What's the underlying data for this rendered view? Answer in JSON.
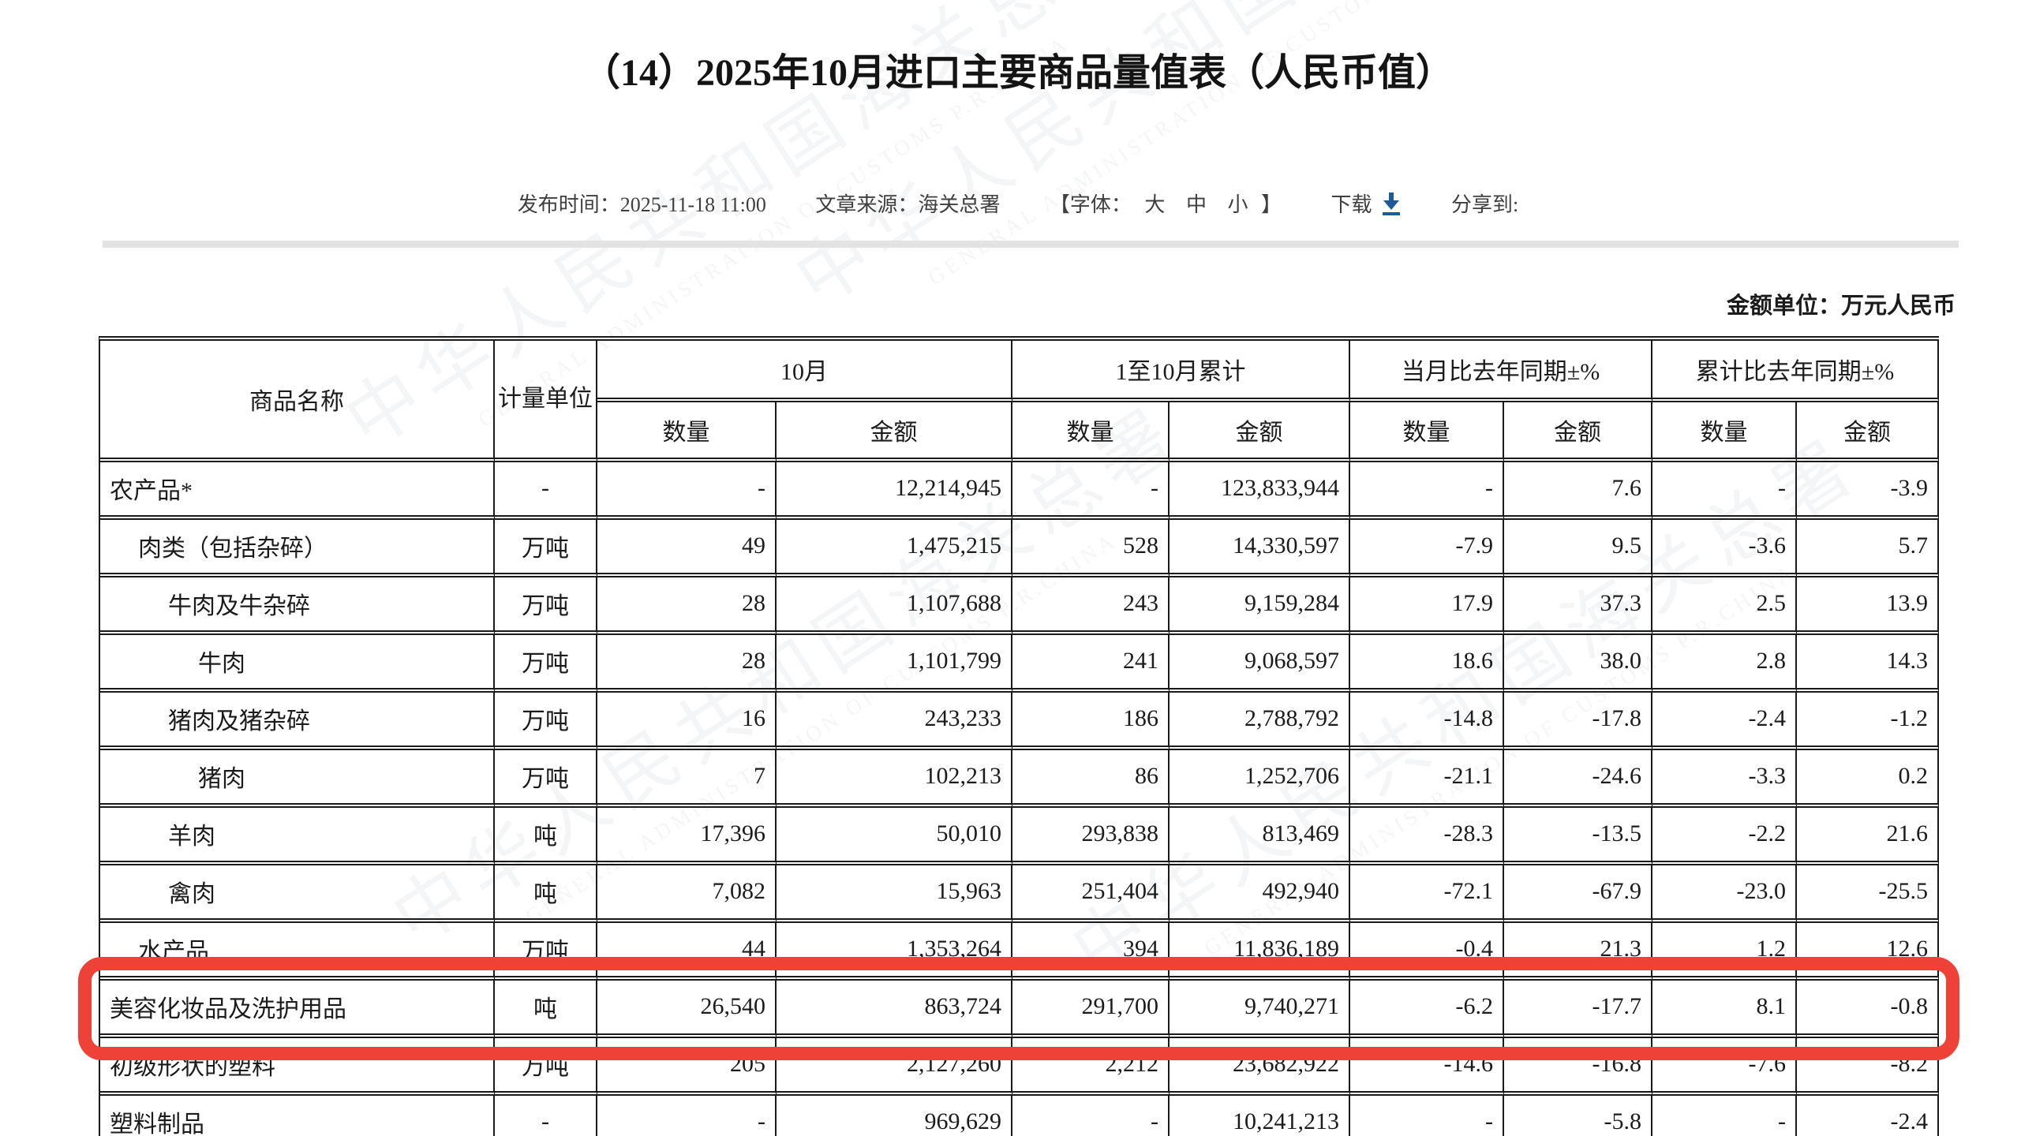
{
  "page": {
    "title": "（14）2025年10月进口主要商品量值表（人民币值）",
    "meta": {
      "publish": "发布时间：2025-11-18 11:00",
      "source": "文章来源：海关总署",
      "font_open": "【字体：",
      "font_large": "大",
      "font_medium": "中",
      "font_small": "小",
      "font_close": "】",
      "download_label": "下载",
      "share_label": "分享到:"
    },
    "unit_note": "金额单位：万元人民币"
  },
  "watermark": {
    "cn": "中华人民共和国海关总署",
    "en": "GENERAL ADMINISTRATION OF CUSTOMS P.R.CHINA"
  },
  "colors": {
    "annotation_red": "#ee4239",
    "download_blue": "#1c5a9c",
    "divider_gray": "#e3e3e3"
  },
  "table": {
    "header": {
      "col_product": "商品名称",
      "col_unit": "计量单位",
      "group_month": "10月",
      "group_cumulative": "1至10月累计",
      "group_month_yoy": "当月比去年同期±%",
      "group_cumulative_yoy": "累计比去年同期±%",
      "sub_qty": "数量",
      "sub_val": "金额"
    },
    "rows": [
      {
        "name": "农产品*",
        "indent": 0,
        "unit": "-",
        "m_qty": "-",
        "m_val": "12,214,945",
        "c_qty": "-",
        "c_val": "123,833,944",
        "ym_qty": "-",
        "ym_val": "7.6",
        "yc_qty": "-",
        "yc_val": "-3.9",
        "highlight": false
      },
      {
        "name": "肉类（包括杂碎）",
        "indent": 1,
        "unit": "万吨",
        "m_qty": "49",
        "m_val": "1,475,215",
        "c_qty": "528",
        "c_val": "14,330,597",
        "ym_qty": "-7.9",
        "ym_val": "9.5",
        "yc_qty": "-3.6",
        "yc_val": "5.7",
        "highlight": false
      },
      {
        "name": "牛肉及牛杂碎",
        "indent": 2,
        "unit": "万吨",
        "m_qty": "28",
        "m_val": "1,107,688",
        "c_qty": "243",
        "c_val": "9,159,284",
        "ym_qty": "17.9",
        "ym_val": "37.3",
        "yc_qty": "2.5",
        "yc_val": "13.9",
        "highlight": false
      },
      {
        "name": "牛肉",
        "indent": 3,
        "unit": "万吨",
        "m_qty": "28",
        "m_val": "1,101,799",
        "c_qty": "241",
        "c_val": "9,068,597",
        "ym_qty": "18.6",
        "ym_val": "38.0",
        "yc_qty": "2.8",
        "yc_val": "14.3",
        "highlight": false
      },
      {
        "name": "猪肉及猪杂碎",
        "indent": 2,
        "unit": "万吨",
        "m_qty": "16",
        "m_val": "243,233",
        "c_qty": "186",
        "c_val": "2,788,792",
        "ym_qty": "-14.8",
        "ym_val": "-17.8",
        "yc_qty": "-2.4",
        "yc_val": "-1.2",
        "highlight": false
      },
      {
        "name": "猪肉",
        "indent": 3,
        "unit": "万吨",
        "m_qty": "7",
        "m_val": "102,213",
        "c_qty": "86",
        "c_val": "1,252,706",
        "ym_qty": "-21.1",
        "ym_val": "-24.6",
        "yc_qty": "-3.3",
        "yc_val": "0.2",
        "highlight": false
      },
      {
        "name": "羊肉",
        "indent": 2,
        "unit": "吨",
        "m_qty": "17,396",
        "m_val": "50,010",
        "c_qty": "293,838",
        "c_val": "813,469",
        "ym_qty": "-28.3",
        "ym_val": "-13.5",
        "yc_qty": "-2.2",
        "yc_val": "21.6",
        "highlight": false
      },
      {
        "name": "禽肉",
        "indent": 2,
        "unit": "吨",
        "m_qty": "7,082",
        "m_val": "15,963",
        "c_qty": "251,404",
        "c_val": "492,940",
        "ym_qty": "-72.1",
        "ym_val": "-67.9",
        "yc_qty": "-23.0",
        "yc_val": "-25.5",
        "highlight": false
      },
      {
        "name": "水产品",
        "indent": 1,
        "unit": "万吨",
        "m_qty": "44",
        "m_val": "1,353,264",
        "c_qty": "394",
        "c_val": "11,836,189",
        "ym_qty": "-0.4",
        "ym_val": "21.3",
        "yc_qty": "1.2",
        "yc_val": "12.6",
        "highlight": false
      },
      {
        "name": "美容化妆品及洗护用品",
        "indent": 0,
        "unit": "吨",
        "m_qty": "26,540",
        "m_val": "863,724",
        "c_qty": "291,700",
        "c_val": "9,740,271",
        "ym_qty": "-6.2",
        "ym_val": "-17.7",
        "yc_qty": "8.1",
        "yc_val": "-0.8",
        "highlight": true
      },
      {
        "name": "初级形状的塑料",
        "indent": 0,
        "unit": "万吨",
        "m_qty": "205",
        "m_val": "2,127,260",
        "c_qty": "2,212",
        "c_val": "23,682,922",
        "ym_qty": "-14.6",
        "ym_val": "-16.8",
        "yc_qty": "-7.6",
        "yc_val": "-8.2",
        "highlight": false
      },
      {
        "name": "塑料制品",
        "indent": 0,
        "unit": "-",
        "m_qty": "-",
        "m_val": "969,629",
        "c_qty": "-",
        "c_val": "10,241,213",
        "ym_qty": "-",
        "ym_val": "-5.8",
        "yc_qty": "-",
        "yc_val": "-2.4",
        "highlight": false
      }
    ]
  }
}
